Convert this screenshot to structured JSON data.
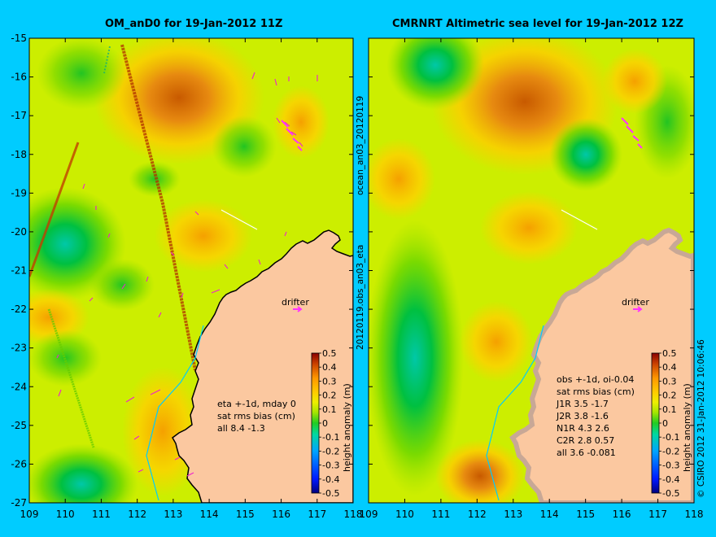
{
  "left_panel": {
    "title": "OM_anD0 for 19-Jan-2012 11Z",
    "drifter_label": "drifter",
    "stats": [
      "eta +-1d, mday 0",
      "sat rms bias (cm)",
      "all 8.4 -1.3"
    ]
  },
  "right_panel": {
    "title": "CMRNRT Altimetric sea level  for 19-Jan-2012 12Z",
    "drifter_label": "drifter",
    "stats": [
      "obs +-1d, oi-0.04",
      "sat rms bias (cm)",
      "J1R   3.5 -1.7",
      "J2R   3.8 -1.6",
      "N1R   4.3 2.6",
      "C2R   2.8 0.57",
      "all 3.6 -0.081"
    ]
  },
  "axes": {
    "x_ticks": [
      "109",
      "110",
      "111",
      "112",
      "113",
      "114",
      "115",
      "116",
      "117",
      "118"
    ],
    "y_ticks": [
      "-15",
      "-16",
      "-17",
      "-18",
      "-19",
      "-20",
      "-21",
      "-22",
      "-23",
      "-24",
      "-25",
      "-26",
      "-27"
    ],
    "x_range": [
      109,
      118
    ],
    "y_range": [
      -27,
      -15
    ]
  },
  "colorbar": {
    "label": "height anomaly (m)",
    "ticks": [
      "0.5",
      "0.4",
      "0.3",
      "0.2",
      "0.1",
      "0",
      "-0.1",
      "-0.2",
      "-0.3",
      "-0.4",
      "-0.5"
    ],
    "colors": [
      "#00007f",
      "#0019ff",
      "#00a5ff",
      "#00e5e5",
      "#00d040",
      "#22cc22",
      "#88dd00",
      "#ccee00",
      "#eeee00",
      "#ffcc00",
      "#ff9900",
      "#e06600",
      "#b83300",
      "#8b0000"
    ]
  },
  "vertical_labels": {
    "file_a": "ocean_an03_20120119",
    "file_b": "20120119.obs_an03_eta",
    "credit": "© CSIRO 2012   31-Jan-2012 10:06:46"
  },
  "colors": {
    "background": "#00ccff",
    "land": "#fbc8a0",
    "coast": "#000000",
    "drifter": "#ff33ff"
  }
}
